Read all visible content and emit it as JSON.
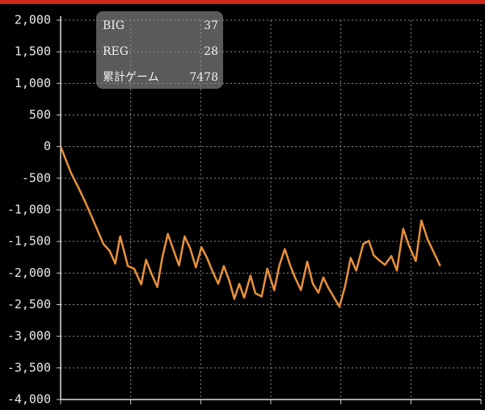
{
  "chart_data": {
    "type": "line",
    "xlim": [
      0,
      6000
    ],
    "xticks": [
      0,
      1000,
      2000,
      3000,
      4000,
      5000,
      6000
    ],
    "ylim": [
      -4000,
      2000
    ],
    "yticks": [
      {
        "value": -4000,
        "label": "-4,000"
      },
      {
        "value": -3500,
        "label": "-3,500"
      },
      {
        "value": -3000,
        "label": "-3,000"
      },
      {
        "value": -2500,
        "label": "-2,500"
      },
      {
        "value": -2000,
        "label": "-2,000"
      },
      {
        "value": -1500,
        "label": "-1,500"
      },
      {
        "value": -1000,
        "label": "-1,000"
      },
      -500,
      0,
      500,
      {
        "value": 1000,
        "label": "1,000"
      },
      {
        "value": 1500,
        "label": "1,500"
      },
      {
        "value": 2000,
        "label": "2,000"
      }
    ],
    "grid": true,
    "color": "#e8913a",
    "x": [
      0,
      150,
      250,
      350,
      440,
      530,
      610,
      700,
      780,
      850,
      960,
      1050,
      1150,
      1220,
      1300,
      1380,
      1450,
      1530,
      1610,
      1690,
      1770,
      1850,
      1930,
      2010,
      2090,
      2170,
      2250,
      2330,
      2410,
      2480,
      2550,
      2620,
      2710,
      2780,
      2870,
      2950,
      3050,
      3120,
      3200,
      3280,
      3350,
      3430,
      3520,
      3600,
      3680,
      3750,
      3820,
      3980,
      4060,
      4140,
      4220,
      4320,
      4400,
      4470,
      4550,
      4630,
      4720,
      4800,
      4890,
      4970,
      5070,
      5150,
      5240,
      5330,
      5420
    ],
    "values": [
      0,
      -420,
      -640,
      -870,
      -1100,
      -1330,
      -1540,
      -1650,
      -1850,
      -1420,
      -1890,
      -1930,
      -2180,
      -1790,
      -2020,
      -2220,
      -1760,
      -1380,
      -1630,
      -1880,
      -1420,
      -1610,
      -1910,
      -1590,
      -1760,
      -1980,
      -2170,
      -1890,
      -2130,
      -2410,
      -2170,
      -2390,
      -2040,
      -2320,
      -2370,
      -1930,
      -2270,
      -1890,
      -1620,
      -1890,
      -2080,
      -2270,
      -1820,
      -2170,
      -2310,
      -2070,
      -2230,
      -2530,
      -2210,
      -1760,
      -1960,
      -1540,
      -1490,
      -1720,
      -1800,
      -1870,
      -1730,
      -1960,
      -1300,
      -1560,
      -1810,
      -1170,
      -1470,
      -1680,
      -1890
    ],
    "stats": [
      {
        "label": "BIG",
        "value": 37
      },
      {
        "label": "REG",
        "value": 28
      },
      {
        "label": "累計ゲーム",
        "value": 7478
      }
    ]
  }
}
